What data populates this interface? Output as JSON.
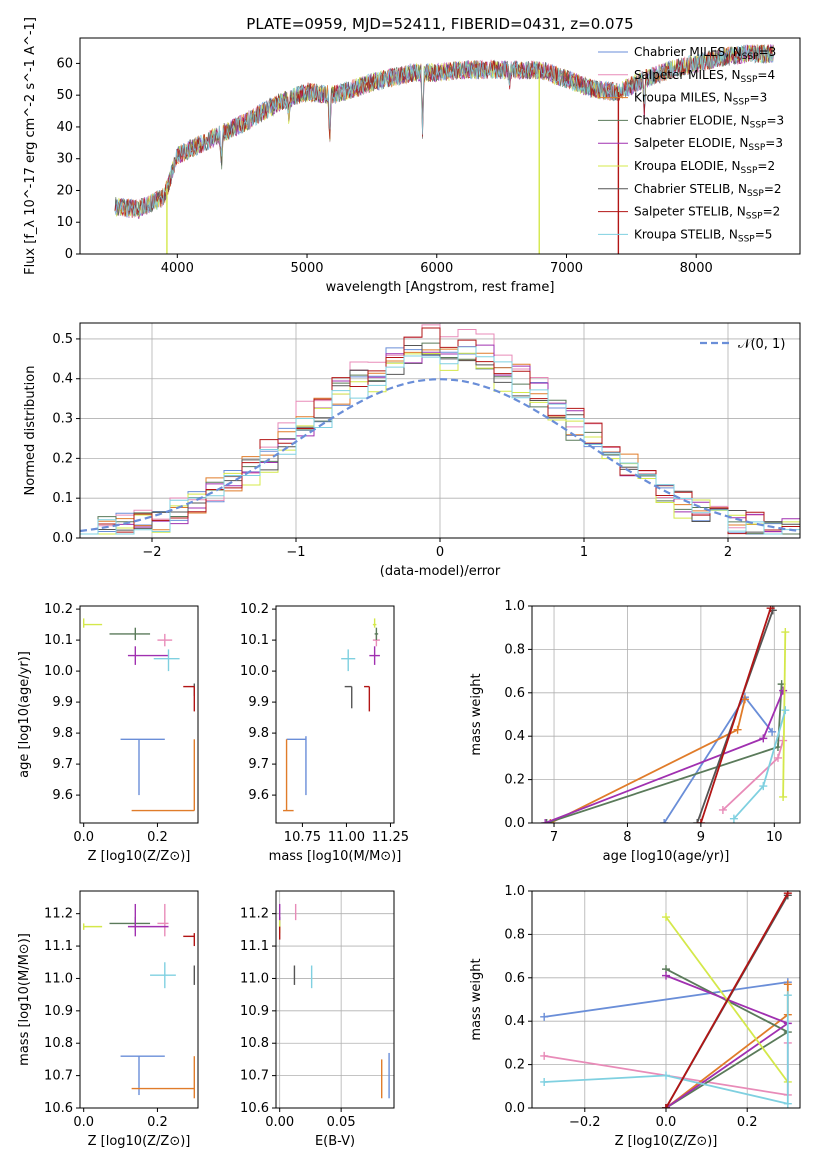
{
  "colors": {
    "miles_chabrier": "#6a8ed8",
    "miles_salpeter": "#e88bb8",
    "miles_kroupa": "#e07c2a",
    "elodie_chabrier": "#5a7a5a",
    "elodie_salpeter": "#a030b0",
    "elodie_kroupa": "#d4e84a",
    "stelib_chabrier": "#555555",
    "stelib_salpeter": "#b21515",
    "stelib_kroupa": "#7fd0e0",
    "gaussian": "#6a8ed8"
  },
  "chart_data": [
    {
      "id": "spectrum",
      "type": "line",
      "title": "PLATE=0959, MJD=52411, FIBERID=0431, z=0.075",
      "xlabel": "wavelength [Angstrom, rest frame]",
      "ylabel": "Flux [f_λ 10^-17 erg cm^-2 s^-1 A^-1]",
      "xlim": [
        3250,
        8800
      ],
      "ylim": [
        0,
        68
      ],
      "xticks": [
        "4000",
        "5000",
        "6000",
        "7000",
        "8000"
      ],
      "yticks": [
        "0",
        "10",
        "20",
        "30",
        "40",
        "50",
        "60"
      ],
      "grid": false,
      "legend_placement": "right",
      "legend": [
        {
          "label": "Chabrier MILES, N",
          "sub": "SSP",
          "suffix": "=3",
          "color": "#6a8ed8"
        },
        {
          "label": "Salpeter MILES, N",
          "sub": "SSP",
          "suffix": "=4",
          "color": "#e88bb8"
        },
        {
          "label": "Kroupa MILES, N",
          "sub": "SSP",
          "suffix": "=3",
          "color": "#e07c2a"
        },
        {
          "label": "Chabrier ELODIE, N",
          "sub": "SSP",
          "suffix": "=3",
          "color": "#5a7a5a"
        },
        {
          "label": "Salpeter ELODIE, N",
          "sub": "SSP",
          "suffix": "=3",
          "color": "#a030b0"
        },
        {
          "label": "Kroupa ELODIE, N",
          "sub": "SSP",
          "suffix": "=2",
          "color": "#d4e84a"
        },
        {
          "label": "Chabrier STELIB, N",
          "sub": "SSP",
          "suffix": "=2",
          "color": "#555555"
        },
        {
          "label": "Salpeter STELIB, N",
          "sub": "SSP",
          "suffix": "=2",
          "color": "#b21515"
        },
        {
          "label": "Kroupa STELIB, N",
          "sub": "SSP",
          "suffix": "=5",
          "color": "#7fd0e0"
        }
      ],
      "continuum": {
        "x": [
          3520,
          3700,
          3900,
          4000,
          4200,
          4500,
          4800,
          5000,
          5200,
          5500,
          5800,
          6000,
          6200,
          6500,
          6800,
          7000,
          7200,
          7400,
          7600,
          7800,
          8000,
          8200,
          8400,
          8600
        ],
        "y": [
          15,
          14,
          18,
          31,
          35,
          41,
          48,
          51,
          50,
          54,
          57,
          57,
          58,
          58,
          58,
          55,
          52,
          51,
          55,
          58,
          60,
          62,
          63,
          63
        ]
      },
      "dropouts": [
        {
          "x": 3920,
          "color": "#d4e84a"
        },
        {
          "x": 6790,
          "color": "#d4e84a"
        },
        {
          "x": 7400,
          "color": "#b21515"
        }
      ]
    },
    {
      "id": "residual-histogram",
      "type": "line",
      "xlabel": "(data-model)/error",
      "ylabel": "Normed distribution",
      "xlim": [
        -2.5,
        2.5
      ],
      "ylim": [
        0,
        0.54
      ],
      "xticks": [
        "−2",
        "−1",
        "0",
        "1",
        "2"
      ],
      "yticks": [
        "0.0",
        "0.1",
        "0.2",
        "0.3",
        "0.4",
        "0.5"
      ],
      "grid": true,
      "legend_placement": "top-right",
      "gaussian_label": "𝒩(0, 1)",
      "bins": 40,
      "series_peaks": [
        0.48,
        0.52,
        0.49,
        0.47,
        0.48,
        0.44,
        0.47,
        0.5,
        0.46
      ]
    },
    {
      "id": "age-vs-Z",
      "type": "scatter",
      "xlabel": "Z [log10(Z/Z⊙)]",
      "ylabel": "age  [log10(age/yr)]",
      "xlim": [
        -0.01,
        0.31
      ],
      "ylim": [
        9.51,
        10.21
      ],
      "xticks": [
        "0.0",
        "0.2"
      ],
      "yticks": [
        "9.6",
        "9.7",
        "9.8",
        "9.9",
        "10.0",
        "10.1",
        "10.2"
      ],
      "grid": false,
      "points": [
        {
          "x": 0.15,
          "y": 9.78,
          "xe": [
            0.1,
            0.22
          ],
          "ye": [
            9.6,
            9.78
          ],
          "color": "#6a8ed8"
        },
        {
          "x": 0.22,
          "y": 10.1,
          "xe": [
            0.2,
            0.24
          ],
          "ye": [
            10.08,
            10.12
          ],
          "color": "#e88bb8"
        },
        {
          "x": 0.3,
          "y": 9.55,
          "xe": [
            0.13,
            0.3
          ],
          "ye": [
            9.55,
            9.78
          ],
          "color": "#e07c2a"
        },
        {
          "x": 0.14,
          "y": 10.12,
          "xe": [
            0.07,
            0.18
          ],
          "ye": [
            10.1,
            10.14
          ],
          "color": "#5a7a5a"
        },
        {
          "x": 0.14,
          "y": 10.05,
          "xe": [
            0.12,
            0.23
          ],
          "ye": [
            10.02,
            10.08
          ],
          "color": "#a030b0"
        },
        {
          "x": 0.0,
          "y": 10.15,
          "xe": [
            0.0,
            0.05
          ],
          "ye": [
            10.14,
            10.17
          ],
          "color": "#d4e84a"
        },
        {
          "x": 0.3,
          "y": 9.95,
          "xe": [
            0.3,
            0.3
          ],
          "ye": [
            9.92,
            9.96
          ],
          "color": "#555555"
        },
        {
          "x": 0.3,
          "y": 9.95,
          "xe": [
            0.27,
            0.3
          ],
          "ye": [
            9.87,
            9.95
          ],
          "color": "#b21515"
        },
        {
          "x": 0.23,
          "y": 10.04,
          "xe": [
            0.19,
            0.26
          ],
          "ye": [
            10.0,
            10.07
          ],
          "color": "#7fd0e0"
        }
      ]
    },
    {
      "id": "age-vs-mass",
      "type": "scatter",
      "xlabel": "mass [log10(M/M⊙)]",
      "ylabel": "",
      "xlim": [
        10.6,
        11.27
      ],
      "ylim": [
        9.51,
        10.21
      ],
      "xticks": [
        "10.75",
        "11.00",
        "11.25"
      ],
      "yticks": [
        "9.6",
        "9.7",
        "9.8",
        "9.9",
        "10.0",
        "10.1",
        "10.2"
      ],
      "grid": false,
      "points": [
        {
          "x": 10.77,
          "y": 9.78,
          "xe": [
            10.66,
            10.77
          ],
          "ye": [
            9.6,
            9.79
          ],
          "color": "#6a8ed8"
        },
        {
          "x": 11.17,
          "y": 10.1,
          "xe": [
            11.15,
            11.19
          ],
          "ye": [
            10.08,
            10.12
          ],
          "color": "#e88bb8"
        },
        {
          "x": 10.66,
          "y": 9.55,
          "xe": [
            10.64,
            10.7
          ],
          "ye": [
            9.55,
            9.78
          ],
          "color": "#e07c2a"
        },
        {
          "x": 11.17,
          "y": 10.12,
          "xe": [
            11.16,
            11.18
          ],
          "ye": [
            10.1,
            10.14
          ],
          "color": "#5a7a5a"
        },
        {
          "x": 11.16,
          "y": 10.05,
          "xe": [
            11.13,
            11.19
          ],
          "ye": [
            10.02,
            10.08
          ],
          "color": "#a030b0"
        },
        {
          "x": 11.16,
          "y": 10.15,
          "xe": [
            11.15,
            11.17
          ],
          "ye": [
            10.14,
            10.17
          ],
          "color": "#d4e84a"
        },
        {
          "x": 11.03,
          "y": 9.95,
          "xe": [
            10.99,
            11.03
          ],
          "ye": [
            9.88,
            9.95
          ],
          "color": "#555555"
        },
        {
          "x": 11.13,
          "y": 9.95,
          "xe": [
            11.1,
            11.13
          ],
          "ye": [
            9.87,
            9.95
          ],
          "color": "#b21515"
        },
        {
          "x": 11.01,
          "y": 10.04,
          "xe": [
            10.97,
            11.05
          ],
          "ye": [
            10.0,
            10.07
          ],
          "color": "#7fd0e0"
        }
      ]
    },
    {
      "id": "massweight-vs-age",
      "type": "line",
      "xlabel": "age  [log10(age/yr)]",
      "ylabel": "mass weight",
      "xlim": [
        6.7,
        10.35
      ],
      "ylim": [
        0,
        1.0
      ],
      "xticks": [
        "7",
        "8",
        "9",
        "10"
      ],
      "yticks": [
        "0.0",
        "0.2",
        "0.4",
        "0.6",
        "0.8",
        "1.0"
      ],
      "grid": true,
      "series": [
        {
          "color": "#6a8ed8",
          "x": [
            8.5,
            9.6,
            9.97
          ],
          "y": [
            0.0,
            0.58,
            0.42
          ]
        },
        {
          "color": "#e07c2a",
          "x": [
            6.95,
            9.5,
            9.6
          ],
          "y": [
            0.0,
            0.43,
            0.57
          ]
        },
        {
          "color": "#5a7a5a",
          "x": [
            6.9,
            10.05,
            10.1
          ],
          "y": [
            0.0,
            0.35,
            0.64
          ]
        },
        {
          "color": "#a030b0",
          "x": [
            6.88,
            9.85,
            10.12
          ],
          "y": [
            0.0,
            0.39,
            0.61
          ]
        },
        {
          "color": "#e88bb8",
          "x": [
            9.3,
            10.05,
            10.12
          ],
          "y": [
            0.06,
            0.3,
            0.38
          ]
        },
        {
          "color": "#d4e84a",
          "x": [
            10.12,
            10.15
          ],
          "y": [
            0.12,
            0.88
          ]
        },
        {
          "color": "#7fd0e0",
          "x": [
            9.45,
            9.85,
            10.15
          ],
          "y": [
            0.02,
            0.17,
            0.52
          ]
        },
        {
          "color": "#555555",
          "x": [
            8.95,
            9.98
          ],
          "y": [
            0.0,
            0.98
          ]
        },
        {
          "color": "#b21515",
          "x": [
            9.0,
            9.95
          ],
          "y": [
            0.0,
            0.99
          ]
        }
      ]
    },
    {
      "id": "mass-vs-Z",
      "type": "scatter",
      "xlabel": "Z [log10(Z/Z⊙)]",
      "ylabel": "mass [log10(M/M⊙)]",
      "xlim": [
        -0.01,
        0.31
      ],
      "ylim": [
        10.6,
        11.27
      ],
      "xticks": [
        "0.0",
        "0.2"
      ],
      "yticks": [
        "10.6",
        "10.7",
        "10.8",
        "10.9",
        "11.0",
        "11.1",
        "11.2"
      ],
      "grid": false,
      "points": [
        {
          "x": 0.15,
          "y": 10.76,
          "xe": [
            0.1,
            0.22
          ],
          "ye": [
            10.64,
            10.76
          ],
          "color": "#6a8ed8"
        },
        {
          "x": 0.22,
          "y": 11.17,
          "xe": [
            0.2,
            0.23
          ],
          "ye": [
            11.13,
            11.23
          ],
          "color": "#e88bb8"
        },
        {
          "x": 0.3,
          "y": 10.66,
          "xe": [
            0.13,
            0.3
          ],
          "ye": [
            10.63,
            10.76
          ],
          "color": "#e07c2a"
        },
        {
          "x": 0.14,
          "y": 11.17,
          "xe": [
            0.07,
            0.18
          ],
          "ye": [
            11.15,
            11.19
          ],
          "color": "#5a7a5a"
        },
        {
          "x": 0.14,
          "y": 11.16,
          "xe": [
            0.12,
            0.23
          ],
          "ye": [
            11.13,
            11.23
          ],
          "color": "#a030b0"
        },
        {
          "x": 0.0,
          "y": 11.16,
          "xe": [
            0.0,
            0.05
          ],
          "ye": [
            11.15,
            11.17
          ],
          "color": "#d4e84a"
        },
        {
          "x": 0.3,
          "y": 11.01,
          "xe": [
            0.3,
            0.3
          ],
          "ye": [
            10.98,
            11.04
          ],
          "color": "#555555"
        },
        {
          "x": 0.3,
          "y": 11.13,
          "xe": [
            0.27,
            0.3
          ],
          "ye": [
            11.1,
            11.14
          ],
          "color": "#b21515"
        },
        {
          "x": 0.22,
          "y": 11.01,
          "xe": [
            0.18,
            0.25
          ],
          "ye": [
            10.97,
            11.05
          ],
          "color": "#7fd0e0"
        }
      ]
    },
    {
      "id": "mass-vs-ebv",
      "type": "scatter",
      "xlabel": "E(B-V)",
      "ylabel": "",
      "xlim": [
        -0.003,
        0.093
      ],
      "ylim": [
        10.6,
        11.27
      ],
      "xticks": [
        "0.00",
        "0.05"
      ],
      "yticks": [
        "10.6",
        "10.7",
        "10.8",
        "10.9",
        "11.0",
        "11.1",
        "11.2"
      ],
      "grid": true,
      "points": [
        {
          "x": 0.089,
          "y": 10.7,
          "ye": [
            10.63,
            10.77
          ],
          "color": "#6a8ed8"
        },
        {
          "x": 0.013,
          "y": 11.2,
          "ye": [
            11.18,
            11.23
          ],
          "color": "#e88bb8"
        },
        {
          "x": 0.083,
          "y": 10.7,
          "ye": [
            10.63,
            10.75
          ],
          "color": "#e07c2a"
        },
        {
          "x": 0.0,
          "y": 11.17,
          "ye": [
            11.15,
            11.19
          ],
          "color": "#5a7a5a"
        },
        {
          "x": 0.0,
          "y": 11.2,
          "ye": [
            11.17,
            11.23
          ],
          "color": "#a030b0"
        },
        {
          "x": 0.0,
          "y": 11.16,
          "ye": [
            11.14,
            11.18
          ],
          "color": "#d4e84a"
        },
        {
          "x": 0.012,
          "y": 11.01,
          "ye": [
            10.98,
            11.04
          ],
          "color": "#555555"
        },
        {
          "x": 0.0,
          "y": 11.14,
          "ye": [
            11.12,
            11.16
          ],
          "color": "#b21515"
        },
        {
          "x": 0.026,
          "y": 11.01,
          "ye": [
            10.97,
            11.04
          ],
          "color": "#7fd0e0"
        }
      ]
    },
    {
      "id": "massweight-vs-Z",
      "type": "line",
      "xlabel": "Z [log10(Z/Z⊙)]",
      "ylabel": "mass weight",
      "xlim": [
        -0.33,
        0.33
      ],
      "ylim": [
        0,
        1.0
      ],
      "xticks": [
        "−0.2",
        "0.0",
        "0.2"
      ],
      "yticks": [
        "0.0",
        "0.2",
        "0.4",
        "0.6",
        "0.8",
        "1.0"
      ],
      "grid": true,
      "series": [
        {
          "color": "#6a8ed8",
          "x": [
            -0.3,
            0.3
          ],
          "y": [
            0.42,
            0.58
          ]
        },
        {
          "color": "#e88bb8",
          "x": [
            -0.3,
            0.3,
            0.3
          ],
          "y": [
            0.24,
            0.06,
            0.3
          ]
        },
        {
          "color": "#e07c2a",
          "x": [
            0.0,
            0.3,
            0.3
          ],
          "y": [
            0.0,
            0.43,
            0.57
          ]
        },
        {
          "color": "#5a7a5a",
          "x": [
            0.0,
            0.3,
            0.0
          ],
          "y": [
            0.0,
            0.35,
            0.64
          ]
        },
        {
          "color": "#a030b0",
          "x": [
            0.0,
            0.3,
            0.0
          ],
          "y": [
            0.0,
            0.39,
            0.61
          ]
        },
        {
          "color": "#d4e84a",
          "x": [
            0.0,
            0.3
          ],
          "y": [
            0.88,
            0.12
          ]
        },
        {
          "color": "#7fd0e0",
          "x": [
            -0.3,
            0.0,
            0.3,
            0.3
          ],
          "y": [
            0.12,
            0.15,
            0.02,
            0.52
          ]
        },
        {
          "color": "#555555",
          "x": [
            0.0,
            0.3
          ],
          "y": [
            0.0,
            0.98
          ]
        },
        {
          "color": "#b21515",
          "x": [
            0.0,
            0.3
          ],
          "y": [
            0.0,
            0.99
          ]
        }
      ]
    }
  ]
}
